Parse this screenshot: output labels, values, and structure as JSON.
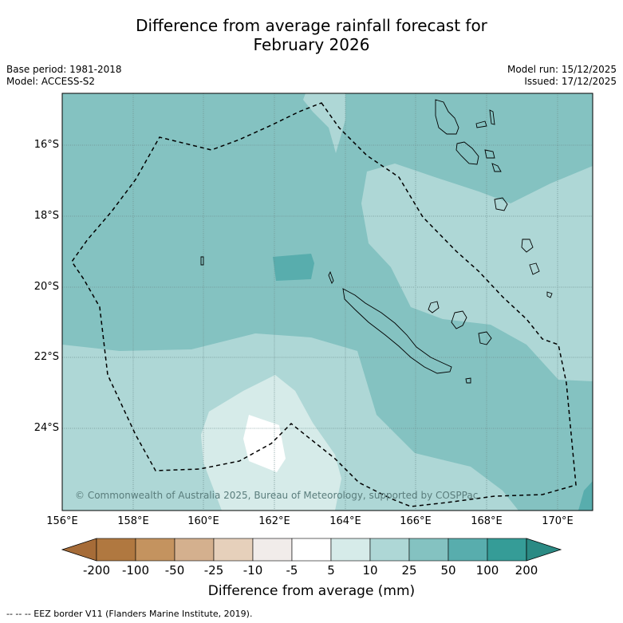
{
  "title_line1": "Difference from average rainfall forecast for",
  "title_line2": "February 2026",
  "meta": {
    "base_period": "Base period: 1981-2018",
    "model": "Model: ACCESS-S2",
    "model_run": "Model run: 15/12/2025",
    "issued": "Issued: 17/12/2025"
  },
  "axes": {
    "x_ticks": [
      "156°E",
      "158°E",
      "160°E",
      "162°E",
      "164°E",
      "166°E",
      "168°E",
      "170°E"
    ],
    "y_ticks": [
      "16°S",
      "18°S",
      "20°S",
      "22°S",
      "24°S"
    ]
  },
  "copyright": "© Commonwealth of Australia 2025, Bureau of Meteorology, supported by COSPPac",
  "colorbar": {
    "labels": [
      "-200",
      "-100",
      "-50",
      "-25",
      "-10",
      "-5",
      "5",
      "10",
      "25",
      "50",
      "100",
      "200"
    ],
    "colors": [
      "#a66c38",
      "#b07840",
      "#c4935f",
      "#d4b08e",
      "#e6d0bb",
      "#f1ecea",
      "#ffffff",
      "#d6ebe9",
      "#aed7d6",
      "#84c2c1",
      "#58adad",
      "#359c97",
      "#2b8a84"
    ],
    "title": "Difference from average (mm)"
  },
  "footnote": "-- -- -- EEZ border V11 (Flanders Marine Institute, 2019)."
}
